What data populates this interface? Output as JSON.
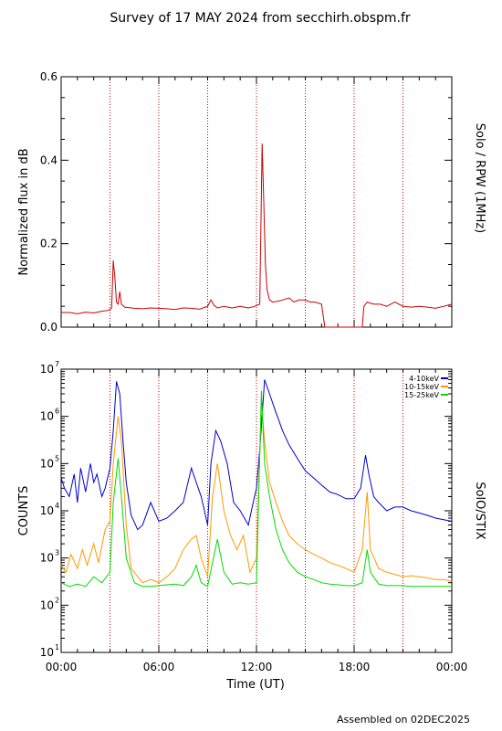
{
  "page": {
    "title": "Survey of 17 MAY 2024 from secchirh.obspm.fr",
    "footer": "Assembled on 02DEC2025"
  },
  "colors": {
    "rpw": "#cc0000",
    "band_4_10": "#0000cc",
    "band_10_15": "#ff9900",
    "band_15_25": "#00dd00",
    "guide": "#cc0000"
  },
  "chart_data": [
    {
      "type": "line",
      "title": "",
      "ylabel": "Normalized flux in dB",
      "right_label": "Solo / RPW (1MHz)",
      "x_unit": "hours UT",
      "xlim": [
        0,
        24
      ],
      "ylim": [
        0,
        0.6
      ],
      "y_scale": "linear",
      "yticks": [
        0.0,
        0.2,
        0.4,
        0.6
      ],
      "ytick_labels": [
        "0.0",
        "0.2",
        "0.4",
        "0.6"
      ],
      "guide_lines_hours": [
        3,
        6,
        9,
        12,
        15,
        18,
        21
      ],
      "series": [
        {
          "x": [
            0,
            0.5,
            1.0,
            1.5,
            2.0,
            2.5,
            2.9,
            3.1,
            3.2,
            3.3,
            3.4,
            3.5,
            3.6,
            3.7,
            3.9,
            4.5,
            5.0,
            5.5,
            6.0,
            6.5,
            7.0,
            7.5,
            8.0,
            8.5,
            9.0,
            9.2,
            9.4,
            9.6,
            10.0,
            10.5,
            11.0,
            11.5,
            11.9,
            12.2,
            12.35,
            12.45,
            12.55,
            12.65,
            12.8,
            13.0,
            13.3,
            13.6,
            14.0,
            14.3,
            14.6,
            15.0,
            15.3,
            15.6,
            16.0,
            16.2,
            16.5,
            17.0,
            17.5,
            18.0,
            18.5,
            18.6,
            18.8,
            19.2,
            19.6,
            20.0,
            20.5,
            21.0,
            21.5,
            22.0,
            22.5,
            23.0,
            23.5,
            24.0
          ],
          "values": [
            0.035,
            0.035,
            0.032,
            0.036,
            0.034,
            0.038,
            0.04,
            0.045,
            0.16,
            0.12,
            0.06,
            0.055,
            0.085,
            0.055,
            0.048,
            0.045,
            0.044,
            0.046,
            0.045,
            0.044,
            0.042,
            0.046,
            0.045,
            0.043,
            0.05,
            0.065,
            0.052,
            0.046,
            0.05,
            0.046,
            0.05,
            0.046,
            0.05,
            0.055,
            0.44,
            0.3,
            0.15,
            0.09,
            0.065,
            0.06,
            0.062,
            0.065,
            0.07,
            0.06,
            0.065,
            0.065,
            0.06,
            0.06,
            0.055,
            0.0,
            0.0,
            0.0,
            0.0,
            0.0,
            0.0,
            0.05,
            0.06,
            0.055,
            0.055,
            0.05,
            0.06,
            0.05,
            0.048,
            0.05,
            0.048,
            0.045,
            0.05,
            0.055
          ]
        }
      ]
    },
    {
      "type": "line",
      "title": "",
      "xlabel": "Time (UT)",
      "ylabel": "COUNTS",
      "right_label": "SolO/STIX",
      "x_unit": "hours UT",
      "xlim": [
        0,
        24
      ],
      "ylim": [
        10,
        10000000
      ],
      "y_scale": "log",
      "ytick_exponents": [
        1,
        2,
        3,
        4,
        5,
        6,
        7
      ],
      "ytick_base": "10",
      "xticks": [
        0,
        6,
        12,
        18,
        24
      ],
      "xtick_labels": [
        "00:00",
        "06:00",
        "12:00",
        "18:00",
        "00:00"
      ],
      "guide_lines_hours": [
        3,
        6,
        9,
        12,
        15,
        18,
        21
      ],
      "legend_position": "top-right",
      "series": [
        {
          "name": "4-10keV",
          "x": [
            0,
            0.2,
            0.5,
            0.8,
            1.0,
            1.2,
            1.5,
            1.8,
            2.0,
            2.2,
            2.5,
            2.7,
            3.0,
            3.2,
            3.4,
            3.6,
            3.8,
            4.0,
            4.3,
            4.7,
            5.0,
            5.5,
            6.0,
            6.5,
            7.0,
            7.5,
            8.0,
            8.3,
            8.6,
            9.0,
            9.2,
            9.5,
            9.8,
            10.2,
            10.6,
            11.0,
            11.5,
            11.8,
            12.0,
            12.2,
            12.5,
            12.8,
            13.2,
            13.6,
            14.0,
            14.5,
            15.0,
            15.5,
            16.0,
            16.5,
            17.0,
            17.5,
            18.0,
            18.4,
            18.7,
            18.9,
            19.2,
            19.5,
            20.0,
            20.5,
            21.0,
            21.5,
            22.0,
            22.5,
            23.0,
            23.5,
            24.0
          ],
          "values": [
            50000,
            30000,
            20000,
            60000,
            15000,
            80000,
            25000,
            100000,
            40000,
            60000,
            20000,
            30000,
            80000,
            500000,
            5500000,
            3000000,
            300000,
            40000,
            8000,
            4000,
            5000,
            15000,
            6000,
            7000,
            10000,
            15000,
            80000,
            40000,
            20000,
            5000,
            100000,
            500000,
            300000,
            100000,
            15000,
            10000,
            5000,
            15000,
            30000,
            200000,
            6000000,
            3000000,
            1200000,
            500000,
            250000,
            130000,
            70000,
            50000,
            35000,
            25000,
            22000,
            18000,
            18000,
            30000,
            150000,
            60000,
            20000,
            15000,
            10000,
            12000,
            12000,
            10000,
            9000,
            8000,
            7000,
            6500,
            6000
          ]
        },
        {
          "name": "10-15keV",
          "x": [
            0,
            0.3,
            0.6,
            1.0,
            1.3,
            1.6,
            2.0,
            2.3,
            2.7,
            3.0,
            3.2,
            3.5,
            3.7,
            4.0,
            4.3,
            4.7,
            5.0,
            5.5,
            6.0,
            6.5,
            7.0,
            7.5,
            8.0,
            8.3,
            8.6,
            9.0,
            9.3,
            9.6,
            10.0,
            10.4,
            10.8,
            11.2,
            11.6,
            12.0,
            12.3,
            12.5,
            12.8,
            13.2,
            13.6,
            14.0,
            14.5,
            15.0,
            15.5,
            16.0,
            16.5,
            17.0,
            17.5,
            18.0,
            18.5,
            18.8,
            19.0,
            19.5,
            20.0,
            20.5,
            21.0,
            21.5,
            22.0,
            22.5,
            23.0,
            23.5,
            24.0
          ],
          "values": [
            700,
            500,
            1200,
            600,
            1500,
            700,
            2000,
            800,
            4000,
            6000,
            100000,
            1000000,
            300000,
            5000,
            600,
            400,
            300,
            350,
            300,
            400,
            600,
            1500,
            2500,
            3000,
            1000,
            400,
            20000,
            100000,
            10000,
            3000,
            1500,
            3000,
            500,
            1000,
            2000000,
            300000,
            40000,
            15000,
            6000,
            3000,
            2000,
            1500,
            1200,
            1000,
            800,
            700,
            600,
            500,
            1500,
            25000,
            1500,
            600,
            500,
            450,
            400,
            420,
            400,
            380,
            350,
            350,
            320
          ]
        },
        {
          "name": "15-25keV",
          "x": [
            0,
            0.5,
            1.0,
            1.5,
            2.0,
            2.5,
            3.0,
            3.2,
            3.5,
            3.7,
            4.0,
            4.5,
            5.0,
            5.5,
            6.0,
            6.5,
            7.0,
            7.5,
            8.0,
            8.3,
            8.6,
            9.0,
            9.3,
            9.6,
            10.0,
            10.5,
            11.0,
            11.5,
            12.0,
            12.3,
            12.5,
            12.8,
            13.2,
            13.6,
            14.0,
            14.5,
            15.0,
            15.5,
            16.0,
            16.5,
            17.0,
            17.5,
            18.0,
            18.5,
            18.8,
            19.0,
            19.5,
            20.0,
            20.5,
            21.0,
            21.5,
            22.0,
            22.5,
            23.0,
            23.5,
            24.0
          ],
          "values": [
            300,
            250,
            280,
            250,
            400,
            300,
            500,
            15000,
            130000,
            20000,
            1000,
            300,
            250,
            250,
            260,
            270,
            280,
            260,
            400,
            700,
            300,
            250,
            800,
            2500,
            500,
            280,
            300,
            280,
            300,
            3500000,
            100000,
            20000,
            4000,
            1500,
            800,
            500,
            400,
            350,
            300,
            280,
            270,
            260,
            260,
            300,
            1500,
            500,
            280,
            260,
            260,
            260,
            250,
            250,
            250,
            250,
            250,
            250
          ]
        }
      ]
    }
  ]
}
